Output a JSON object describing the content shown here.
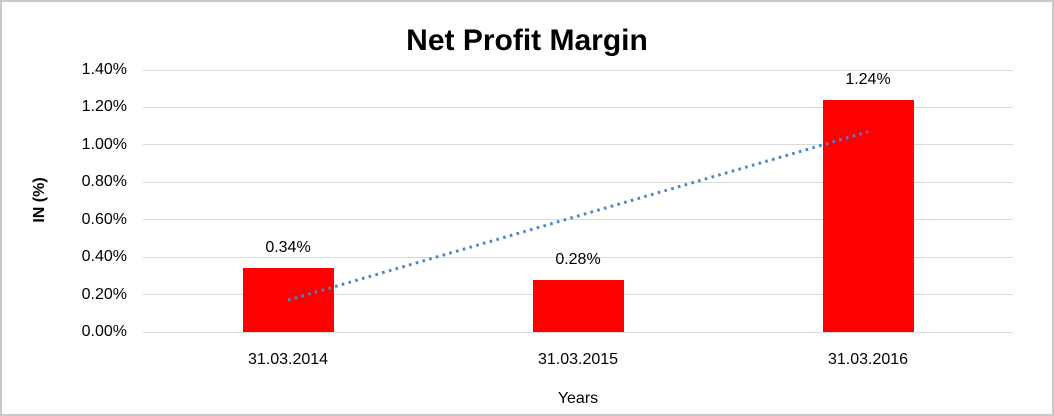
{
  "chart_data": {
    "type": "bar",
    "title": "Net Profit Margin",
    "xlabel": "Years",
    "ylabel": "IN (%)",
    "categories": [
      "31.03.2014",
      "31.03.2015",
      "31.03.2016"
    ],
    "values": [
      0.34,
      0.28,
      1.24
    ],
    "data_labels": [
      "0.34%",
      "0.28%",
      "1.24%"
    ],
    "ylim": [
      0,
      1.4
    ],
    "ytick_step": 0.2,
    "ytick_labels": [
      "0.00%",
      "0.20%",
      "0.40%",
      "0.60%",
      "0.80%",
      "1.00%",
      "1.20%",
      "1.40%"
    ],
    "grid": true,
    "legend": "none",
    "bar_color": "#ff0000",
    "gridline_color": "#d9d9d9",
    "text_color": "#000000",
    "frame_border_color": "#c9c9c9",
    "trendline": {
      "style": "dotted",
      "color": "#4a86cc",
      "start_value": 0.17,
      "end_value": 1.07
    }
  }
}
